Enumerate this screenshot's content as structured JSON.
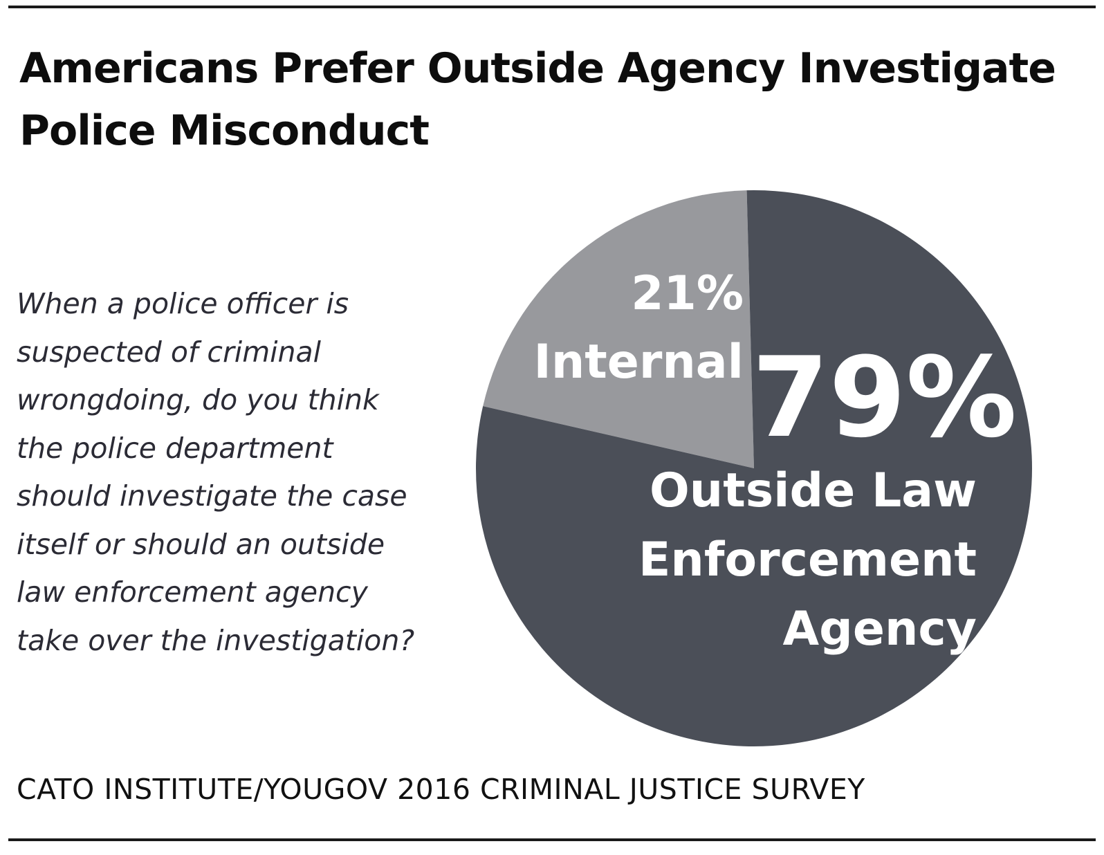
{
  "title_lines": [
    "Americans Prefer Outside Agency Investigate",
    "Police Misconduct"
  ],
  "question_lines": [
    "When a police officer is",
    "suspected of criminal",
    "wrongdoing, do you think",
    "the police department",
    "should investigate the case",
    "itself or should an outside",
    "law enforcement agency",
    "take over the investigation?"
  ],
  "source": "CATO INSTITUTE/YOUGOV 2016 CRIMINAL JUSTICE SURVEY",
  "colors": {
    "outside": "#4b4f58",
    "internal": "#98999d",
    "label": "#ffffff"
  },
  "chart_data": {
    "type": "pie",
    "title": "Americans Prefer Outside Agency Investigate Police Misconduct",
    "slices": [
      {
        "name": "Internal",
        "value": 21,
        "value_label": "21%",
        "label_lines": [
          "Internal"
        ],
        "color": "#98999d"
      },
      {
        "name": "Outside Law Enforcement Agency",
        "value": 79,
        "value_label": "79%",
        "label_lines": [
          "Outside Law",
          "Enforcement",
          "Agency"
        ],
        "color": "#4b4f58"
      }
    ]
  }
}
